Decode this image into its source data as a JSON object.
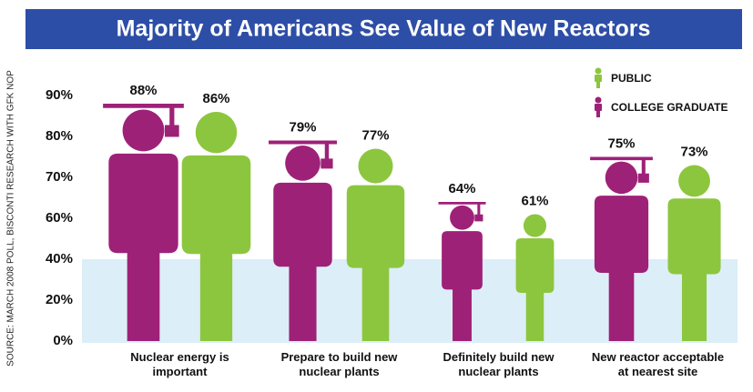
{
  "chart_data": {
    "type": "pictograph",
    "title": "Majority of Americans See Value of New Reactors",
    "source": "SOURCE: MARCH 2008 POLL, BISCONTI RESEARCH WITH GFK NOP",
    "categories": [
      "Nuclear energy is important",
      "Prepare to build new nuclear plants",
      "Definitely build new nuclear plants",
      "New reactor acceptable at nearest site"
    ],
    "series": [
      {
        "name": "COLLEGE GRADUATE",
        "color": "#9e2178",
        "values": [
          88,
          79,
          64,
          75
        ],
        "value_labels": [
          "88%",
          "79%",
          "64%",
          "75%"
        ]
      },
      {
        "name": "PUBLIC",
        "color": "#8cc63e",
        "values": [
          86,
          77,
          61,
          73
        ],
        "value_labels": [
          "86%",
          "77%",
          "61%",
          "73%"
        ]
      }
    ],
    "ylim": [
      0,
      90
    ],
    "yticks": [
      {
        "value": 0,
        "label": "0%"
      },
      {
        "value": 20,
        "label": "20%"
      },
      {
        "value": 40,
        "label": "40%"
      },
      {
        "value": 60,
        "label": "60%"
      },
      {
        "value": 70,
        "label": "70%"
      },
      {
        "value": 80,
        "label": "80%"
      },
      {
        "value": 90,
        "label": "90%"
      }
    ],
    "legend_order": [
      "PUBLIC",
      "COLLEGE GRADUATE"
    ]
  }
}
